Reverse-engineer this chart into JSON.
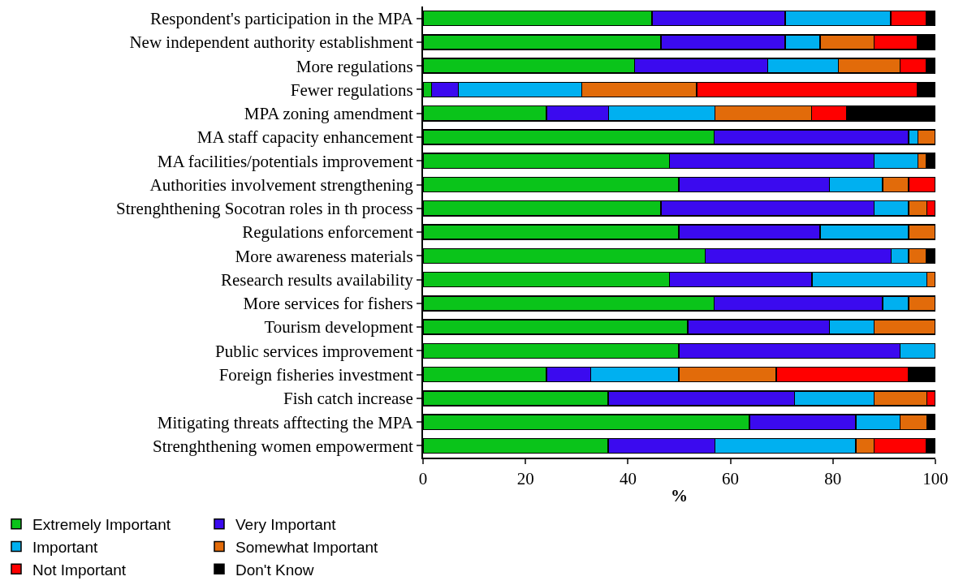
{
  "chart_data": {
    "type": "bar",
    "orientation": "horizontal",
    "stacked": true,
    "xlabel": "%",
    "categories": [
      "Respondent's participation in the MPA",
      "New independent authority establishment",
      "More regulations",
      "Fewer regulations",
      "MPA zoning amendment",
      "MA staff capacity enhancement",
      "MA facilities/potentials improvement",
      "Authorities involvement strengthening",
      "Strenghthening Socotran roles in th process",
      "Regulations enforcement",
      "More awareness materials",
      "Research results availability",
      "More services for fishers",
      "Tourism development",
      "Public services improvement",
      "Foreign fisheries investment",
      "Fish catch increase",
      "Mitigating threats afftecting the MPA",
      "Strenghthening women empowerment"
    ],
    "series": [
      {
        "name": "Extremely Important",
        "color": "#0ac41a",
        "values": [
          44.7,
          46.4,
          41.3,
          1.7,
          24.1,
          56.8,
          48.1,
          49.9,
          46.4,
          49.9,
          55.1,
          48.1,
          56.8,
          51.7,
          49.9,
          24.1,
          36.1,
          63.7,
          36.1
        ]
      },
      {
        "name": "Very Important",
        "color": "#3b0aef",
        "values": [
          26.0,
          24.3,
          26.0,
          5.2,
          12.1,
          38.0,
          39.9,
          29.4,
          41.6,
          27.6,
          36.3,
          27.8,
          32.9,
          27.6,
          43.2,
          8.6,
          36.4,
          20.8,
          20.9
        ]
      },
      {
        "name": "Important",
        "color": "#00b0f0",
        "values": [
          20.6,
          6.8,
          13.8,
          24.1,
          20.8,
          1.8,
          8.6,
          10.4,
          6.8,
          17.3,
          3.4,
          22.4,
          5.1,
          8.7,
          6.9,
          17.2,
          15.5,
          8.6,
          27.5
        ]
      },
      {
        "name": "Somewhat Important",
        "color": "#e26b0a",
        "values": [
          0,
          10.5,
          12.0,
          22.4,
          18.8,
          3.4,
          1.6,
          5.1,
          3.5,
          5.2,
          3.4,
          1.7,
          5.2,
          12.0,
          0,
          19.0,
          10.3,
          5.2,
          3.5
        ]
      },
      {
        "name": "Not Important",
        "color": "#ff0000",
        "values": [
          6.9,
          8.5,
          5.1,
          43.1,
          6.9,
          0,
          0,
          5.2,
          1.7,
          0,
          0,
          0,
          0,
          0,
          0,
          25.9,
          1.7,
          0,
          10.2
        ]
      },
      {
        "name": "Don't Know",
        "color": "#000000",
        "values": [
          1.8,
          3.5,
          1.8,
          3.5,
          17.3,
          0,
          1.8,
          0,
          0,
          0,
          1.8,
          0,
          0,
          0,
          0,
          5.2,
          0,
          1.7,
          1.8
        ]
      }
    ],
    "xlim": [
      0,
      100
    ],
    "xticks": [
      0,
      20,
      40,
      60,
      80,
      100
    ],
    "legend": "bottom"
  }
}
